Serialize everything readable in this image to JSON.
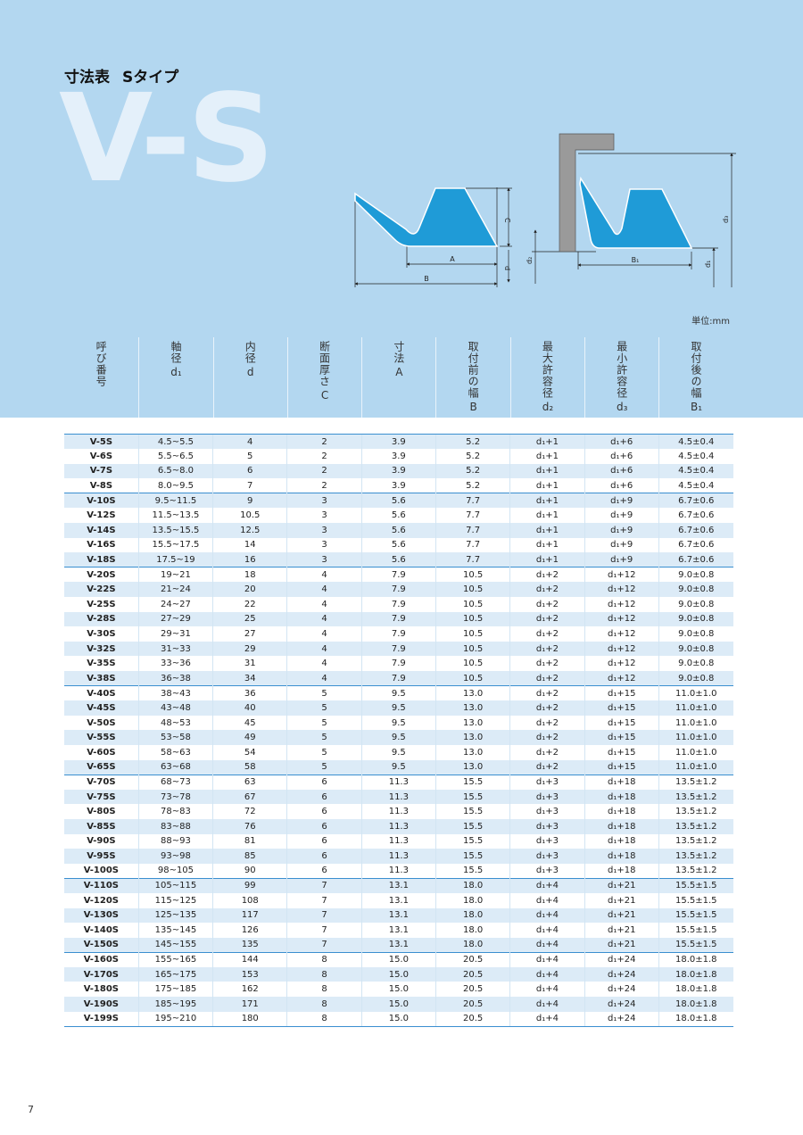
{
  "header": {
    "title": "寸法表",
    "subtitle": "Sタイプ",
    "big": "V-S"
  },
  "diagram": {
    "labels": {
      "A": "A",
      "B": "B",
      "C": "C",
      "d": "d",
      "d1": "d₁",
      "d2": "d₂",
      "d3": "d₃",
      "B1": "B₁"
    }
  },
  "unit": "単位:mm",
  "table": {
    "headers": [
      {
        "text": "呼び番号"
      },
      {
        "text": "軸径",
        "sub": "d₁"
      },
      {
        "text": "内径",
        "sub": "d"
      },
      {
        "text": "断面厚さ",
        "sub": "C"
      },
      {
        "text": "寸法",
        "sub": "A"
      },
      {
        "text": "取付前の幅",
        "sub": "B"
      },
      {
        "text": "最大許容径",
        "sub": "d₂"
      },
      {
        "text": "最小許容径",
        "sub": "d₃"
      },
      {
        "text": "取付後の幅",
        "sub": "B₁"
      }
    ],
    "rows": [
      [
        "V-5S",
        "4.5~5.5",
        "4",
        "2",
        "3.9",
        "5.2",
        "d₁+1",
        "d₁+6",
        "4.5±0.4"
      ],
      [
        "V-6S",
        "5.5~6.5",
        "5",
        "2",
        "3.9",
        "5.2",
        "d₁+1",
        "d₁+6",
        "4.5±0.4"
      ],
      [
        "V-7S",
        "6.5~8.0",
        "6",
        "2",
        "3.9",
        "5.2",
        "d₁+1",
        "d₁+6",
        "4.5±0.4"
      ],
      [
        "V-8S",
        "8.0~9.5",
        "7",
        "2",
        "3.9",
        "5.2",
        "d₁+1",
        "d₁+6",
        "4.5±0.4"
      ],
      [
        "V-10S",
        "9.5~11.5",
        "9",
        "3",
        "5.6",
        "7.7",
        "d₁+1",
        "d₁+9",
        "6.7±0.6"
      ],
      [
        "V-12S",
        "11.5~13.5",
        "10.5",
        "3",
        "5.6",
        "7.7",
        "d₁+1",
        "d₁+9",
        "6.7±0.6"
      ],
      [
        "V-14S",
        "13.5~15.5",
        "12.5",
        "3",
        "5.6",
        "7.7",
        "d₁+1",
        "d₁+9",
        "6.7±0.6"
      ],
      [
        "V-16S",
        "15.5~17.5",
        "14",
        "3",
        "5.6",
        "7.7",
        "d₁+1",
        "d₁+9",
        "6.7±0.6"
      ],
      [
        "V-18S",
        "17.5~19",
        "16",
        "3",
        "5.6",
        "7.7",
        "d₁+1",
        "d₁+9",
        "6.7±0.6"
      ],
      [
        "V-20S",
        "19~21",
        "18",
        "4",
        "7.9",
        "10.5",
        "d₁+2",
        "d₁+12",
        "9.0±0.8"
      ],
      [
        "V-22S",
        "21~24",
        "20",
        "4",
        "7.9",
        "10.5",
        "d₁+2",
        "d₁+12",
        "9.0±0.8"
      ],
      [
        "V-25S",
        "24~27",
        "22",
        "4",
        "7.9",
        "10.5",
        "d₁+2",
        "d₁+12",
        "9.0±0.8"
      ],
      [
        "V-28S",
        "27~29",
        "25",
        "4",
        "7.9",
        "10.5",
        "d₁+2",
        "d₁+12",
        "9.0±0.8"
      ],
      [
        "V-30S",
        "29~31",
        "27",
        "4",
        "7.9",
        "10.5",
        "d₁+2",
        "d₁+12",
        "9.0±0.8"
      ],
      [
        "V-32S",
        "31~33",
        "29",
        "4",
        "7.9",
        "10.5",
        "d₁+2",
        "d₁+12",
        "9.0±0.8"
      ],
      [
        "V-35S",
        "33~36",
        "31",
        "4",
        "7.9",
        "10.5",
        "d₁+2",
        "d₁+12",
        "9.0±0.8"
      ],
      [
        "V-38S",
        "36~38",
        "34",
        "4",
        "7.9",
        "10.5",
        "d₁+2",
        "d₁+12",
        "9.0±0.8"
      ],
      [
        "V-40S",
        "38~43",
        "36",
        "5",
        "9.5",
        "13.0",
        "d₁+2",
        "d₁+15",
        "11.0±1.0"
      ],
      [
        "V-45S",
        "43~48",
        "40",
        "5",
        "9.5",
        "13.0",
        "d₁+2",
        "d₁+15",
        "11.0±1.0"
      ],
      [
        "V-50S",
        "48~53",
        "45",
        "5",
        "9.5",
        "13.0",
        "d₁+2",
        "d₁+15",
        "11.0±1.0"
      ],
      [
        "V-55S",
        "53~58",
        "49",
        "5",
        "9.5",
        "13.0",
        "d₁+2",
        "d₁+15",
        "11.0±1.0"
      ],
      [
        "V-60S",
        "58~63",
        "54",
        "5",
        "9.5",
        "13.0",
        "d₁+2",
        "d₁+15",
        "11.0±1.0"
      ],
      [
        "V-65S",
        "63~68",
        "58",
        "5",
        "9.5",
        "13.0",
        "d₁+2",
        "d₁+15",
        "11.0±1.0"
      ],
      [
        "V-70S",
        "68~73",
        "63",
        "6",
        "11.3",
        "15.5",
        "d₁+3",
        "d₁+18",
        "13.5±1.2"
      ],
      [
        "V-75S",
        "73~78",
        "67",
        "6",
        "11.3",
        "15.5",
        "d₁+3",
        "d₁+18",
        "13.5±1.2"
      ],
      [
        "V-80S",
        "78~83",
        "72",
        "6",
        "11.3",
        "15.5",
        "d₁+3",
        "d₁+18",
        "13.5±1.2"
      ],
      [
        "V-85S",
        "83~88",
        "76",
        "6",
        "11.3",
        "15.5",
        "d₁+3",
        "d₁+18",
        "13.5±1.2"
      ],
      [
        "V-90S",
        "88~93",
        "81",
        "6",
        "11.3",
        "15.5",
        "d₁+3",
        "d₁+18",
        "13.5±1.2"
      ],
      [
        "V-95S",
        "93~98",
        "85",
        "6",
        "11.3",
        "15.5",
        "d₁+3",
        "d₁+18",
        "13.5±1.2"
      ],
      [
        "V-100S",
        "98~105",
        "90",
        "6",
        "11.3",
        "15.5",
        "d₁+3",
        "d₁+18",
        "13.5±1.2"
      ],
      [
        "V-110S",
        "105~115",
        "99",
        "7",
        "13.1",
        "18.0",
        "d₁+4",
        "d₁+21",
        "15.5±1.5"
      ],
      [
        "V-120S",
        "115~125",
        "108",
        "7",
        "13.1",
        "18.0",
        "d₁+4",
        "d₁+21",
        "15.5±1.5"
      ],
      [
        "V-130S",
        "125~135",
        "117",
        "7",
        "13.1",
        "18.0",
        "d₁+4",
        "d₁+21",
        "15.5±1.5"
      ],
      [
        "V-140S",
        "135~145",
        "126",
        "7",
        "13.1",
        "18.0",
        "d₁+4",
        "d₁+21",
        "15.5±1.5"
      ],
      [
        "V-150S",
        "145~155",
        "135",
        "7",
        "13.1",
        "18.0",
        "d₁+4",
        "d₁+21",
        "15.5±1.5"
      ],
      [
        "V-160S",
        "155~165",
        "144",
        "8",
        "15.0",
        "20.5",
        "d₁+4",
        "d₁+24",
        "18.0±1.8"
      ],
      [
        "V-170S",
        "165~175",
        "153",
        "8",
        "15.0",
        "20.5",
        "d₁+4",
        "d₁+24",
        "18.0±1.8"
      ],
      [
        "V-180S",
        "175~185",
        "162",
        "8",
        "15.0",
        "20.5",
        "d₁+4",
        "d₁+24",
        "18.0±1.8"
      ],
      [
        "V-190S",
        "185~195",
        "171",
        "8",
        "15.0",
        "20.5",
        "d₁+4",
        "d₁+24",
        "18.0±1.8"
      ],
      [
        "V-199S",
        "195~210",
        "180",
        "8",
        "15.0",
        "20.5",
        "d₁+4",
        "d₁+24",
        "18.0±1.8"
      ]
    ]
  },
  "page_number": "7"
}
